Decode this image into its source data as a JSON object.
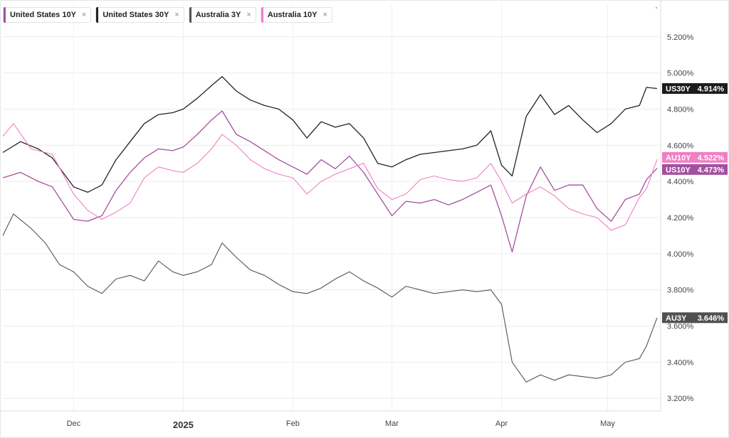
{
  "legend": [
    {
      "label": "United States 10Y",
      "close": "×",
      "color": "#a3509f"
    },
    {
      "label": "United States 30Y",
      "close": "×",
      "color": "#222222"
    },
    {
      "label": "Australia 3Y",
      "close": "×",
      "color": "#555555"
    },
    {
      "label": "Australia 10Y",
      "close": "×",
      "color": "#f07fc4"
    }
  ],
  "chart_data": {
    "type": "line",
    "x_ticks": [
      {
        "label": "Dec",
        "day": 20,
        "major": false
      },
      {
        "label": "2025",
        "day": 51,
        "major": true
      },
      {
        "label": "Feb",
        "day": 82,
        "major": false
      },
      {
        "label": "Mar",
        "day": 110,
        "major": false
      },
      {
        "label": "Apr",
        "day": 141,
        "major": false
      },
      {
        "label": "May",
        "day": 171,
        "major": false
      }
    ],
    "x_range": [
      0,
      186
    ],
    "y_ticks": [
      "5.200%",
      "5.000%",
      "4.800%",
      "4.600%",
      "4.400%",
      "4.200%",
      "4.000%",
      "3.800%",
      "3.600%",
      "3.400%",
      "3.200%"
    ],
    "ylim": [
      3.13,
      5.38
    ],
    "grid": true,
    "series": [
      {
        "name": "United States 30Y",
        "color": "#222222",
        "width": 1.3,
        "points": [
          [
            0,
            4.56
          ],
          [
            5,
            4.62
          ],
          [
            10,
            4.58
          ],
          [
            14,
            4.53
          ],
          [
            20,
            4.37
          ],
          [
            24,
            4.34
          ],
          [
            28,
            4.38
          ],
          [
            32,
            4.52
          ],
          [
            36,
            4.62
          ],
          [
            40,
            4.72
          ],
          [
            44,
            4.77
          ],
          [
            48,
            4.78
          ],
          [
            51,
            4.8
          ],
          [
            55,
            4.86
          ],
          [
            59,
            4.93
          ],
          [
            62,
            4.98
          ],
          [
            66,
            4.9
          ],
          [
            70,
            4.85
          ],
          [
            74,
            4.82
          ],
          [
            78,
            4.8
          ],
          [
            82,
            4.74
          ],
          [
            86,
            4.64
          ],
          [
            90,
            4.73
          ],
          [
            94,
            4.7
          ],
          [
            98,
            4.72
          ],
          [
            102,
            4.64
          ],
          [
            106,
            4.5
          ],
          [
            110,
            4.48
          ],
          [
            114,
            4.52
          ],
          [
            118,
            4.55
          ],
          [
            122,
            4.56
          ],
          [
            126,
            4.57
          ],
          [
            130,
            4.58
          ],
          [
            134,
            4.6
          ],
          [
            138,
            4.68
          ],
          [
            141,
            4.49
          ],
          [
            144,
            4.43
          ],
          [
            148,
            4.76
          ],
          [
            152,
            4.88
          ],
          [
            156,
            4.77
          ],
          [
            160,
            4.82
          ],
          [
            164,
            4.74
          ],
          [
            168,
            4.67
          ],
          [
            172,
            4.72
          ],
          [
            176,
            4.8
          ],
          [
            180,
            4.82
          ],
          [
            182,
            4.92
          ],
          [
            185,
            4.914
          ]
        ]
      },
      {
        "name": "United States 10Y",
        "color": "#a3509f",
        "width": 1.3,
        "points": [
          [
            0,
            4.42
          ],
          [
            5,
            4.45
          ],
          [
            10,
            4.4
          ],
          [
            14,
            4.37
          ],
          [
            20,
            4.19
          ],
          [
            24,
            4.18
          ],
          [
            28,
            4.21
          ],
          [
            32,
            4.35
          ],
          [
            36,
            4.45
          ],
          [
            40,
            4.53
          ],
          [
            44,
            4.58
          ],
          [
            48,
            4.57
          ],
          [
            51,
            4.59
          ],
          [
            55,
            4.66
          ],
          [
            59,
            4.74
          ],
          [
            62,
            4.79
          ],
          [
            66,
            4.66
          ],
          [
            70,
            4.62
          ],
          [
            74,
            4.57
          ],
          [
            78,
            4.52
          ],
          [
            82,
            4.48
          ],
          [
            86,
            4.44
          ],
          [
            90,
            4.52
          ],
          [
            94,
            4.47
          ],
          [
            98,
            4.54
          ],
          [
            102,
            4.45
          ],
          [
            106,
            4.33
          ],
          [
            110,
            4.21
          ],
          [
            114,
            4.29
          ],
          [
            118,
            4.28
          ],
          [
            122,
            4.3
          ],
          [
            126,
            4.27
          ],
          [
            130,
            4.3
          ],
          [
            134,
            4.34
          ],
          [
            138,
            4.38
          ],
          [
            141,
            4.21
          ],
          [
            144,
            4.01
          ],
          [
            148,
            4.32
          ],
          [
            152,
            4.48
          ],
          [
            156,
            4.35
          ],
          [
            160,
            4.38
          ],
          [
            164,
            4.38
          ],
          [
            168,
            4.25
          ],
          [
            172,
            4.18
          ],
          [
            176,
            4.3
          ],
          [
            180,
            4.33
          ],
          [
            182,
            4.41
          ],
          [
            185,
            4.473
          ]
        ]
      },
      {
        "name": "Australia 10Y",
        "color": "#f07fc4",
        "width": 1.1,
        "points": [
          [
            0,
            4.65
          ],
          [
            3,
            4.72
          ],
          [
            8,
            4.58
          ],
          [
            14,
            4.55
          ],
          [
            20,
            4.33
          ],
          [
            24,
            4.24
          ],
          [
            28,
            4.19
          ],
          [
            32,
            4.23
          ],
          [
            36,
            4.28
          ],
          [
            40,
            4.42
          ],
          [
            44,
            4.48
          ],
          [
            48,
            4.46
          ],
          [
            51,
            4.45
          ],
          [
            55,
            4.5
          ],
          [
            59,
            4.58
          ],
          [
            62,
            4.66
          ],
          [
            66,
            4.6
          ],
          [
            70,
            4.52
          ],
          [
            74,
            4.47
          ],
          [
            78,
            4.44
          ],
          [
            82,
            4.42
          ],
          [
            86,
            4.33
          ],
          [
            90,
            4.4
          ],
          [
            94,
            4.44
          ],
          [
            98,
            4.47
          ],
          [
            102,
            4.5
          ],
          [
            106,
            4.36
          ],
          [
            110,
            4.3
          ],
          [
            114,
            4.33
          ],
          [
            118,
            4.41
          ],
          [
            122,
            4.43
          ],
          [
            126,
            4.41
          ],
          [
            130,
            4.4
          ],
          [
            134,
            4.42
          ],
          [
            138,
            4.5
          ],
          [
            141,
            4.4
          ],
          [
            144,
            4.28
          ],
          [
            148,
            4.33
          ],
          [
            152,
            4.37
          ],
          [
            156,
            4.32
          ],
          [
            160,
            4.25
          ],
          [
            164,
            4.22
          ],
          [
            168,
            4.2
          ],
          [
            172,
            4.13
          ],
          [
            176,
            4.16
          ],
          [
            180,
            4.31
          ],
          [
            182,
            4.36
          ],
          [
            185,
            4.522
          ]
        ]
      },
      {
        "name": "Australia 3Y",
        "color": "#555555",
        "width": 1.1,
        "points": [
          [
            0,
            4.1
          ],
          [
            3,
            4.22
          ],
          [
            8,
            4.14
          ],
          [
            12,
            4.06
          ],
          [
            16,
            3.94
          ],
          [
            20,
            3.9
          ],
          [
            24,
            3.82
          ],
          [
            28,
            3.78
          ],
          [
            32,
            3.86
          ],
          [
            36,
            3.88
          ],
          [
            40,
            3.85
          ],
          [
            44,
            3.96
          ],
          [
            48,
            3.9
          ],
          [
            51,
            3.88
          ],
          [
            55,
            3.9
          ],
          [
            59,
            3.94
          ],
          [
            62,
            4.06
          ],
          [
            66,
            3.98
          ],
          [
            70,
            3.91
          ],
          [
            74,
            3.88
          ],
          [
            78,
            3.83
          ],
          [
            82,
            3.79
          ],
          [
            86,
            3.78
          ],
          [
            90,
            3.81
          ],
          [
            94,
            3.86
          ],
          [
            98,
            3.9
          ],
          [
            102,
            3.85
          ],
          [
            106,
            3.81
          ],
          [
            110,
            3.76
          ],
          [
            114,
            3.82
          ],
          [
            118,
            3.8
          ],
          [
            122,
            3.78
          ],
          [
            126,
            3.79
          ],
          [
            130,
            3.8
          ],
          [
            134,
            3.79
          ],
          [
            138,
            3.8
          ],
          [
            141,
            3.72
          ],
          [
            144,
            3.4
          ],
          [
            148,
            3.29
          ],
          [
            152,
            3.33
          ],
          [
            156,
            3.3
          ],
          [
            160,
            3.33
          ],
          [
            164,
            3.32
          ],
          [
            168,
            3.31
          ],
          [
            172,
            3.33
          ],
          [
            176,
            3.4
          ],
          [
            180,
            3.42
          ],
          [
            182,
            3.49
          ],
          [
            185,
            3.646
          ]
        ]
      }
    ]
  },
  "price_tags": [
    {
      "code": "US30Y",
      "value": "4.914%",
      "color": "#1c1c1c",
      "y": 4.914
    },
    {
      "code": "AU10Y",
      "value": "4.522%",
      "color": "#f07fc4",
      "y": 4.533
    },
    {
      "code": "US10Y",
      "value": "4.473%",
      "color": "#a3509f",
      "y": 4.466
    },
    {
      "code": "AU3Y",
      "value": "3.646%",
      "color": "#505050",
      "y": 3.646
    }
  ]
}
